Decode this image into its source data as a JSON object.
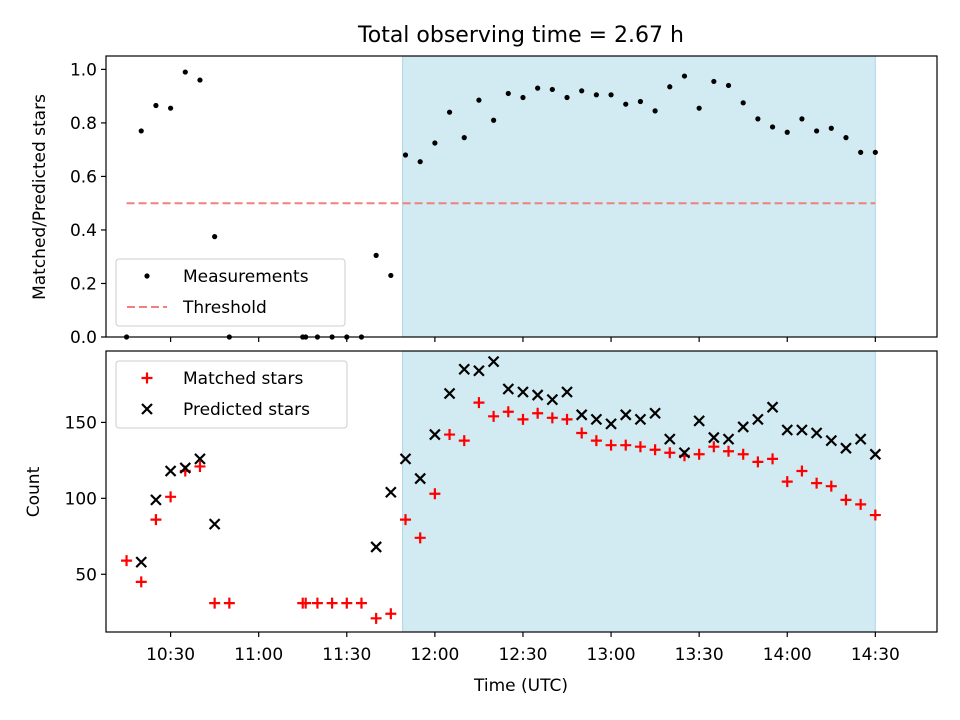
{
  "title": "Total observing time = 2.67 h",
  "shade_color": "#add8e6",
  "threshold_color": "#f08080",
  "chart_data": [
    {
      "type": "scatter",
      "panel": "top",
      "xlabel": "",
      "ylabel": "Matched/Predicted stars",
      "xlim": [
        "10:08",
        "14:51"
      ],
      "ylim": [
        0,
        1.05
      ],
      "yticks": [
        0.0,
        0.2,
        0.4,
        0.6,
        0.8,
        1.0
      ],
      "ytick_labels": [
        "0.0",
        "0.2",
        "0.4",
        "0.6",
        "0.8",
        "1.0"
      ],
      "shaded_x_range": [
        "11:49",
        "14:30"
      ],
      "legend_position": "lower-left",
      "series": [
        {
          "name": "Measurements",
          "marker": "dot",
          "color": "#000000",
          "points": [
            [
              "10:15",
              0.0
            ],
            [
              "10:20",
              0.77
            ],
            [
              "10:25",
              0.865
            ],
            [
              "10:30",
              0.855
            ],
            [
              "10:35",
              0.99
            ],
            [
              "10:40",
              0.96
            ],
            [
              "10:45",
              0.375
            ],
            [
              "10:50",
              0.0
            ],
            [
              "11:15",
              0.0
            ],
            [
              "11:16",
              0.0
            ],
            [
              "11:20",
              0.0
            ],
            [
              "11:25",
              0.0
            ],
            [
              "11:30",
              0.0
            ],
            [
              "11:35",
              0.0
            ],
            [
              "11:40",
              0.305
            ],
            [
              "11:45",
              0.23
            ],
            [
              "11:50",
              0.68
            ],
            [
              "11:55",
              0.655
            ],
            [
              "12:00",
              0.725
            ],
            [
              "12:05",
              0.84
            ],
            [
              "12:10",
              0.745
            ],
            [
              "12:15",
              0.885
            ],
            [
              "12:20",
              0.81
            ],
            [
              "12:25",
              0.91
            ],
            [
              "12:30",
              0.895
            ],
            [
              "12:35",
              0.93
            ],
            [
              "12:40",
              0.925
            ],
            [
              "12:45",
              0.895
            ],
            [
              "12:50",
              0.92
            ],
            [
              "12:55",
              0.905
            ],
            [
              "13:00",
              0.905
            ],
            [
              "13:05",
              0.87
            ],
            [
              "13:10",
              0.88
            ],
            [
              "13:15",
              0.845
            ],
            [
              "13:20",
              0.935
            ],
            [
              "13:25",
              0.975
            ],
            [
              "13:30",
              0.855
            ],
            [
              "13:35",
              0.955
            ],
            [
              "13:40",
              0.94
            ],
            [
              "13:45",
              0.875
            ],
            [
              "13:50",
              0.815
            ],
            [
              "13:55",
              0.785
            ],
            [
              "14:00",
              0.765
            ],
            [
              "14:05",
              0.815
            ],
            [
              "14:10",
              0.77
            ],
            [
              "14:15",
              0.78
            ],
            [
              "14:20",
              0.745
            ],
            [
              "14:25",
              0.69
            ],
            [
              "14:30",
              0.69
            ]
          ]
        },
        {
          "name": "Threshold",
          "line": "dashed",
          "color": "#f08080",
          "points": [
            [
              "10:15",
              0.5
            ],
            [
              "14:30",
              0.5
            ]
          ]
        }
      ]
    },
    {
      "type": "scatter",
      "panel": "bottom",
      "xlabel": "Time (UTC)",
      "ylabel": "Count",
      "xlim": [
        "10:08",
        "14:51"
      ],
      "ylim": [
        12,
        197
      ],
      "yticks": [
        50,
        100,
        150
      ],
      "ytick_labels": [
        "50",
        "100",
        "150"
      ],
      "xticks": [
        "10:30",
        "11:00",
        "11:30",
        "12:00",
        "12:30",
        "13:00",
        "13:30",
        "14:00",
        "14:30"
      ],
      "shaded_x_range": [
        "11:49",
        "14:30"
      ],
      "legend_position": "upper-left",
      "series": [
        {
          "name": "Matched stars",
          "marker": "plus",
          "color": "#ff0000",
          "points": [
            [
              "10:15",
              59
            ],
            [
              "10:20",
              45
            ],
            [
              "10:25",
              86
            ],
            [
              "10:30",
              101
            ],
            [
              "10:35",
              118
            ],
            [
              "10:40",
              121
            ],
            [
              "10:45",
              31
            ],
            [
              "10:50",
              31
            ],
            [
              "11:15",
              31
            ],
            [
              "11:16",
              31
            ],
            [
              "11:20",
              31
            ],
            [
              "11:25",
              31
            ],
            [
              "11:30",
              31
            ],
            [
              "11:35",
              31
            ],
            [
              "11:40",
              21
            ],
            [
              "11:45",
              24
            ],
            [
              "11:50",
              86
            ],
            [
              "11:55",
              74
            ],
            [
              "12:00",
              103
            ],
            [
              "12:05",
              142
            ],
            [
              "12:10",
              138
            ],
            [
              "12:15",
              163
            ],
            [
              "12:20",
              154
            ],
            [
              "12:25",
              157
            ],
            [
              "12:30",
              152
            ],
            [
              "12:35",
              156
            ],
            [
              "12:40",
              153
            ],
            [
              "12:45",
              152
            ],
            [
              "12:50",
              143
            ],
            [
              "12:55",
              138
            ],
            [
              "13:00",
              135
            ],
            [
              "13:05",
              135
            ],
            [
              "13:10",
              134
            ],
            [
              "13:15",
              132
            ],
            [
              "13:20",
              130
            ],
            [
              "13:25",
              128
            ],
            [
              "13:30",
              129
            ],
            [
              "13:35",
              134
            ],
            [
              "13:40",
              131
            ],
            [
              "13:45",
              129
            ],
            [
              "13:50",
              124
            ],
            [
              "13:55",
              126
            ],
            [
              "14:00",
              111
            ],
            [
              "14:05",
              118
            ],
            [
              "14:10",
              110
            ],
            [
              "14:15",
              108
            ],
            [
              "14:20",
              99
            ],
            [
              "14:25",
              96
            ],
            [
              "14:30",
              89
            ]
          ]
        },
        {
          "name": "Predicted stars",
          "marker": "x",
          "color": "#000000",
          "points": [
            [
              "10:20",
              58
            ],
            [
              "10:25",
              99
            ],
            [
              "10:30",
              118
            ],
            [
              "10:35",
              120
            ],
            [
              "10:40",
              126
            ],
            [
              "10:45",
              83
            ],
            [
              "11:40",
              68
            ],
            [
              "11:45",
              104
            ],
            [
              "11:50",
              126
            ],
            [
              "11:55",
              113
            ],
            [
              "12:00",
              142
            ],
            [
              "12:05",
              169
            ],
            [
              "12:10",
              185
            ],
            [
              "12:15",
              184
            ],
            [
              "12:20",
              190
            ],
            [
              "12:25",
              172
            ],
            [
              "12:30",
              170
            ],
            [
              "12:35",
              168
            ],
            [
              "12:40",
              165
            ],
            [
              "12:45",
              170
            ],
            [
              "12:50",
              155
            ],
            [
              "12:55",
              152
            ],
            [
              "13:00",
              149
            ],
            [
              "13:05",
              155
            ],
            [
              "13:10",
              152
            ],
            [
              "13:15",
              156
            ],
            [
              "13:20",
              139
            ],
            [
              "13:25",
              130
            ],
            [
              "13:30",
              151
            ],
            [
              "13:35",
              140
            ],
            [
              "13:40",
              139
            ],
            [
              "13:45",
              147
            ],
            [
              "13:50",
              152
            ],
            [
              "13:55",
              160
            ],
            [
              "14:00",
              145
            ],
            [
              "14:05",
              145
            ],
            [
              "14:10",
              143
            ],
            [
              "14:15",
              138
            ],
            [
              "14:20",
              133
            ],
            [
              "14:25",
              139
            ],
            [
              "14:30",
              129
            ]
          ]
        }
      ]
    }
  ]
}
